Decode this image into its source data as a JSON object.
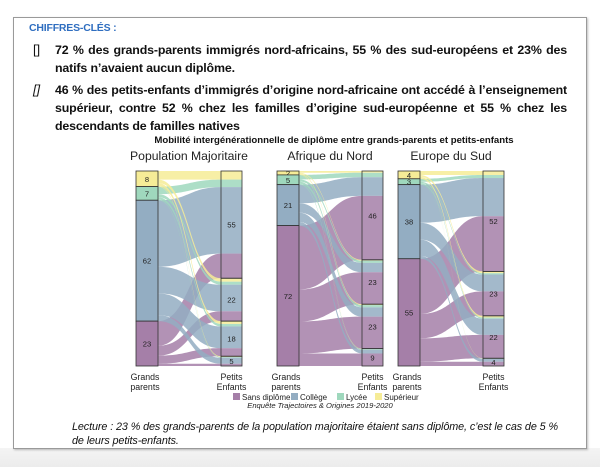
{
  "header": {
    "kicker": "CHIFFRES-CLÉS :"
  },
  "bullets": [
    {
      "marker": "[]",
      "text": "72 % des grands-parents immigrés nord-africains, 55 % des sud-européens et 23% des natifs n’avaient aucun diplôme."
    },
    {
      "marker": "[]",
      "text": "46 % des petits-enfants d’immigrés d’origine nord-africaine ont accédé à l’enseignement supérieur, contre 52 % chez les familles d’origine sud-européenne et 55 % chez les descendants de familles natives"
    }
  ],
  "chart_data": {
    "type": "sankey",
    "title": "Mobilité intergénérationnelle de diplôme entre grands-parents et petits-enfants",
    "source": "Enquête Trajectoires & Origines 2019-2020",
    "left_axis_label": "Grands parents",
    "right_axis_label": "Petits Enfants",
    "levels": [
      "Sans diplôme",
      "Collège",
      "Lycée",
      "Supérieur"
    ],
    "colors": {
      "Sans diplôme": "#a57fa8",
      "Collège": "#93adc2",
      "Lycée": "#9fd8bd",
      "Supérieur": "#f6ec97"
    },
    "legend": [
      {
        "label": "Sans diplôme"
      },
      {
        "label": "Collège"
      },
      {
        "label": "Lycée"
      },
      {
        "label": "Supérieur"
      }
    ],
    "panels": [
      {
        "name": "Population Majoritaire",
        "grandparents": {
          "Supérieur": 8,
          "Lycée": 7,
          "Collège": 62,
          "Sans diplôme": 23
        },
        "grandchildren": {
          "Supérieur": 55,
          "Lycée": 22,
          "Collège": 18,
          "Sans diplôme": 5
        }
      },
      {
        "name": "Afrique du Nord",
        "grandparents": {
          "Supérieur": 2,
          "Lycée": 5,
          "Collège": 21,
          "Sans diplôme": 72
        },
        "grandchildren": {
          "Supérieur": 46,
          "Lycée": 23,
          "Collège": 23,
          "Sans diplôme": 9
        }
      },
      {
        "name": "Europe du Sud",
        "grandparents": {
          "Supérieur": 4,
          "Lycée": 3,
          "Collège": 38,
          "Sans diplôme": 55
        },
        "grandchildren": {
          "Supérieur": 52,
          "Lycée": 23,
          "Collège": 22,
          "Sans diplôme": 4
        }
      }
    ]
  },
  "lecture": "Lecture : 23 % des grands-parents de la population majoritaire étaient sans diplôme, c’est le cas de 5 % de leurs petits-enfants."
}
